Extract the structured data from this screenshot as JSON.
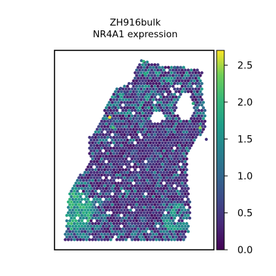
{
  "chart_data": {
    "type": "scatter",
    "title_lines": [
      "ZH916bulk",
      "NR4A1 expression"
    ],
    "xlabel": "",
    "ylabel": "",
    "description": "Spatial transcriptomics spot map of expression values over a tissue section, viridis color scale",
    "colormap": "viridis",
    "colorbar": {
      "range": [
        0.0,
        2.7
      ],
      "ticks": [
        0.0,
        0.5,
        1.0,
        1.5,
        2.0,
        2.5
      ],
      "tick_labels": [
        "0.0",
        "0.5",
        "1.0",
        "1.5",
        "2.0",
        "2.5"
      ]
    },
    "grid": false,
    "legend": "colorbar-right"
  }
}
